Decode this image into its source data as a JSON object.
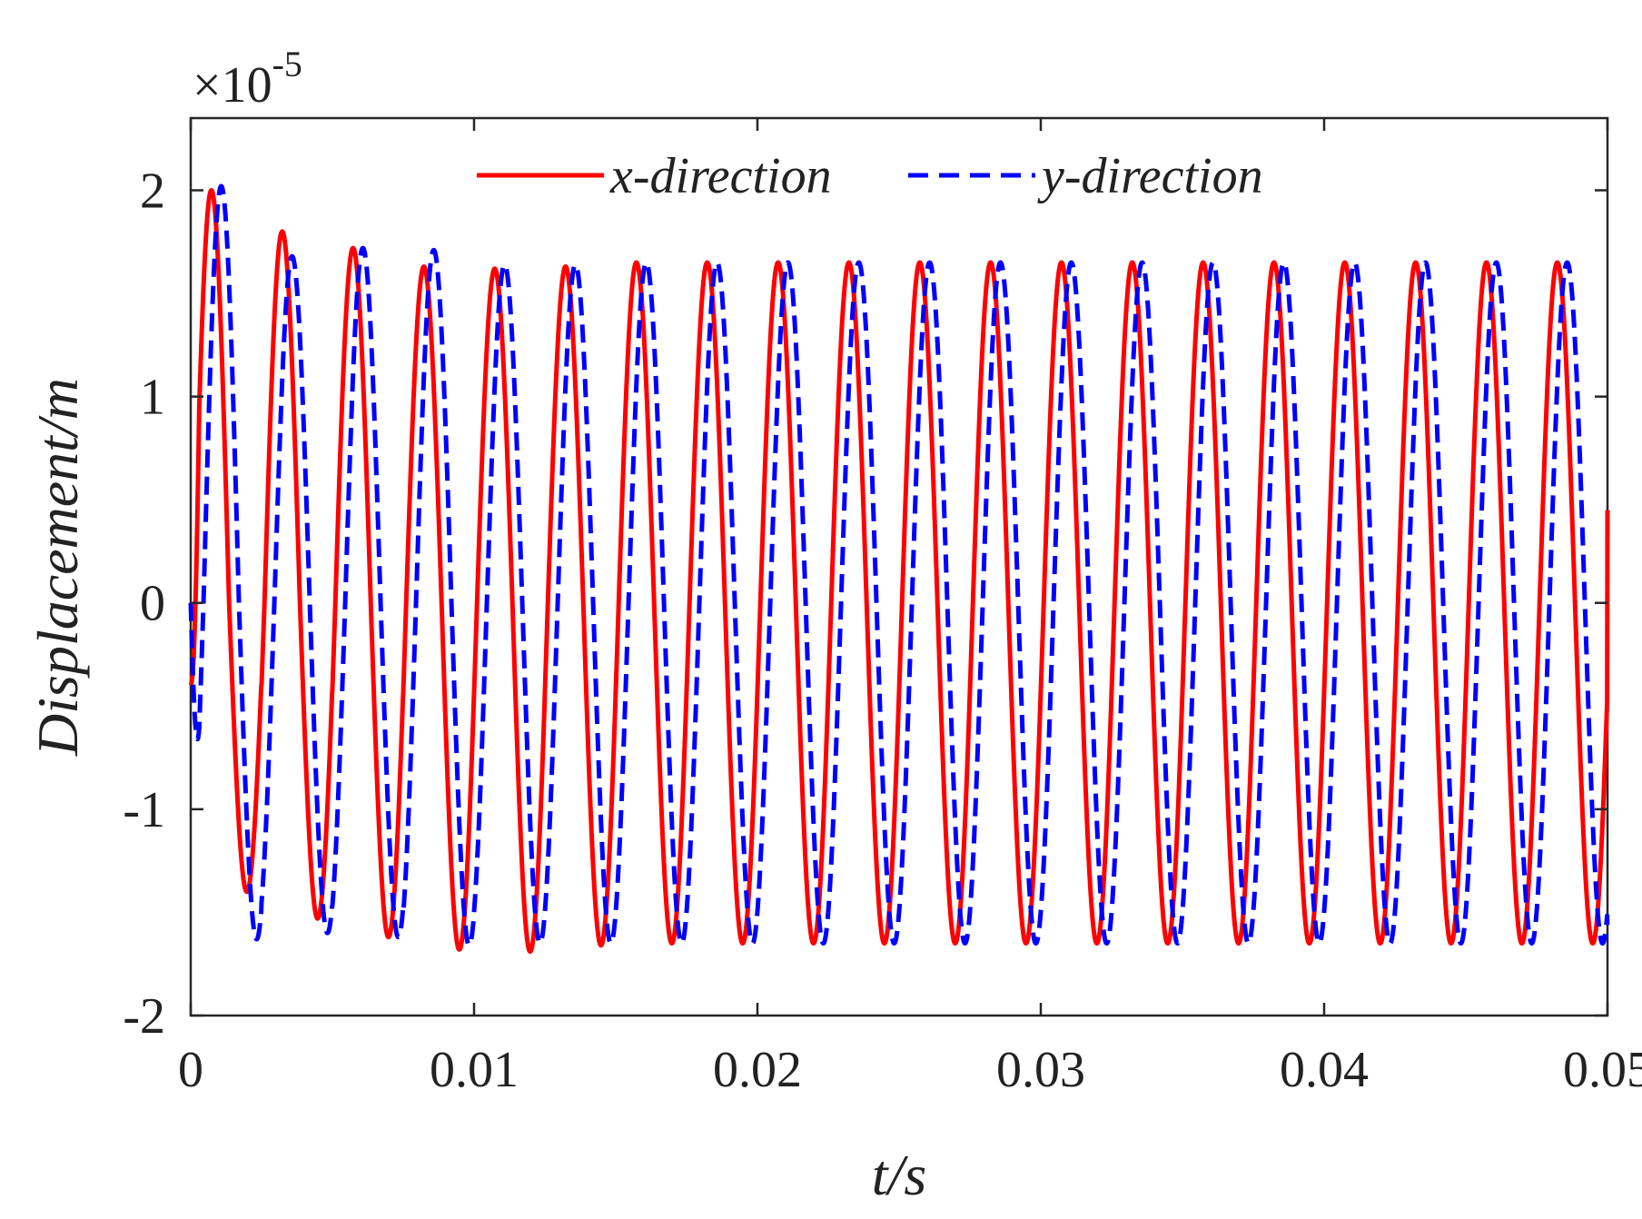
{
  "chart_data": {
    "type": "line",
    "xlabel": "t/s",
    "ylabel": "Displacement/m",
    "xlim": [
      0,
      0.05
    ],
    "ylim": [
      -2,
      2.35
    ],
    "x_ticks": [
      0,
      0.01,
      0.02,
      0.03,
      0.04,
      0.05
    ],
    "x_tick_labels": [
      "0",
      "0.01",
      "0.02",
      "0.03",
      "0.04",
      "0.05"
    ],
    "y_ticks": [
      -2,
      -1,
      0,
      1,
      2
    ],
    "y_tick_labels": [
      "-2",
      "-1",
      "0",
      "1",
      "2"
    ],
    "y_exponent": {
      "base": "×10",
      "power": "-5"
    },
    "legend_position": "top-center",
    "grid": false,
    "series": [
      {
        "name": "x-direction",
        "color": "#ff0000",
        "style": "solid",
        "frequency_hz": 400,
        "phase_deg": -15,
        "start_value": -0.4,
        "end_value": 0.45,
        "first_peaks": [
          2.0,
          1.8,
          1.72,
          1.63,
          1.62,
          1.63
        ],
        "first_troughs": [
          -1.4,
          -1.53,
          -1.62,
          -1.68,
          -1.69,
          -1.66
        ],
        "steady_amplitude": 1.65
      },
      {
        "name": "y-direction",
        "color": "#0000ff",
        "style": "dashed",
        "frequency_hz": 400,
        "phase_deg": -65,
        "start_value": 0,
        "end_value": -1.6,
        "first_peaks": [
          2.02,
          1.68,
          1.72,
          1.71,
          1.64,
          1.64
        ],
        "first_troughs": [
          -1.63,
          -1.6,
          -1.62,
          -1.66,
          -1.65,
          -1.65
        ],
        "steady_amplitude": 1.65
      }
    ]
  }
}
